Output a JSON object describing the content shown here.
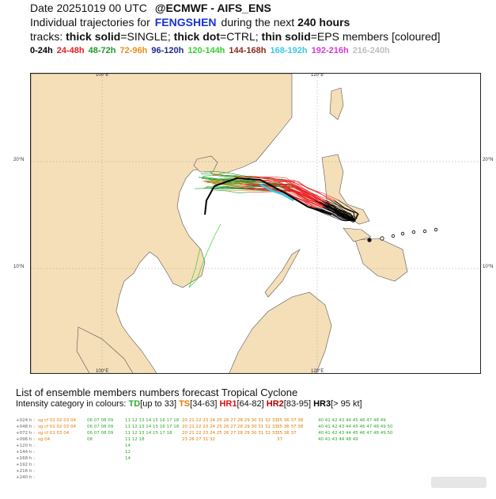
{
  "header": {
    "date_line": "Date 20251019 00 UTC",
    "agency": "@ECMWF - AIFS_ENS",
    "title_prefix": "Individual trajectories for",
    "storm_name": "FENGSHEN",
    "title_middle": "during the next",
    "hours": "240 hours",
    "tracks_prefix": "tracks:",
    "tracks_single_b": "thick solid",
    "tracks_single": "=SINGLE;",
    "tracks_ctrl_b": "thick dot",
    "tracks_ctrl": "=CTRL;",
    "tracks_eps_b": "thin solid",
    "tracks_eps": "=EPS members [coloured]"
  },
  "time_legend": [
    {
      "label": "0-24h",
      "color": "#000000"
    },
    {
      "label": "24-48h",
      "color": "#e81e1e"
    },
    {
      "label": "48-72h",
      "color": "#1f9a2a"
    },
    {
      "label": "72-96h",
      "color": "#f28c1c"
    },
    {
      "label": "96-120h",
      "color": "#1f2a88"
    },
    {
      "label": "120-144h",
      "color": "#37d12f"
    },
    {
      "label": "144-168h",
      "color": "#8b2b1e"
    },
    {
      "label": "168-192h",
      "color": "#39c9e8"
    },
    {
      "label": "192-216h",
      "color": "#d63ad6"
    },
    {
      "label": "216-240h",
      "color": "#bfbfbf"
    }
  ],
  "map": {
    "lon_ticks_top": [
      "100°E",
      "120°E"
    ],
    "lon_ticks_bottom": [
      "100°E",
      "120°E"
    ],
    "lat_ticks_left": [
      "20°N",
      "10°N"
    ],
    "lat_ticks_right": [
      "20°N",
      "10°N"
    ]
  },
  "list": {
    "title": "List of ensemble members numbers forecast Tropical Cyclone",
    "intensity_prefix": "Intensity category in colours:",
    "td": "TD",
    "td_range": "[up to 33]",
    "ts": "TS",
    "ts_range": "[34-63]",
    "hr1": "HR1",
    "hr1_range": "[64-82]",
    "hr2": "HR2",
    "hr2_range": "[83-95]",
    "hr3": "HR3",
    "hr3_range": "[> 95 kt]"
  },
  "table": [
    {
      "lead": "+024 h",
      "g1": "sg cf 01 02 03 04",
      "g2": "06 07 08 09",
      "g3": "11 12 13 14 15 16 17 18",
      "g4": "20 21 22 23 24 25 26 27 28 29 30 31 32 33",
      "g5": "35 36 37 38",
      "g6": "40 41 42 43 44 45 46 47 48 49"
    },
    {
      "lead": "+048 h",
      "g1": "sg cf 01 02 03 04",
      "g2": "06 07 08 09",
      "g3": "11 12 13 14 15 16 17 18",
      "g4": "20 21 22 23 24 25 26 27 28 29 30 31 32 33",
      "g5": "35 36 37 38",
      "g6": "40 41 42 43 44 45 46 47 48 49 50"
    },
    {
      "lead": "+072 h",
      "g1": "sg cf 01 03 04",
      "g2": "06 07 08 09",
      "g3": "11 12 13 14 15 17 18",
      "g4": "20 21 22 23 24 25 26 27 28 29 30 31 32 33",
      "g5": "35 36 37",
      "g6": "40 41 42 43 44 45 46 47 48 49 50"
    },
    {
      "lead": "+096 h",
      "g1": "sg 04",
      "g2": "08",
      "g3": "11 12 18",
      "g4": "23 26 27 31 32",
      "g5": "37",
      "g6": "40 41 43 44 48 49"
    },
    {
      "lead": "+120 h",
      "g1": "",
      "g2": "",
      "g3": "14",
      "g4": "",
      "g5": "",
      "g6": ""
    },
    {
      "lead": "+144 h",
      "g1": "",
      "g2": "",
      "g3": "12",
      "g4": "",
      "g5": "",
      "g6": ""
    },
    {
      "lead": "+168 h",
      "g1": "",
      "g2": "",
      "g3": "14",
      "g4": "",
      "g5": "",
      "g6": ""
    },
    {
      "lead": "+192 h",
      "g1": "",
      "g2": "",
      "g3": "",
      "g4": "",
      "g5": "",
      "g6": ""
    },
    {
      "lead": "+216 h",
      "g1": "",
      "g2": "",
      "g3": "",
      "g4": "",
      "g5": "",
      "g6": ""
    },
    {
      "lead": "+240 h",
      "g1": "",
      "g2": "",
      "g3": "",
      "g4": "",
      "g5": "",
      "g6": ""
    }
  ]
}
